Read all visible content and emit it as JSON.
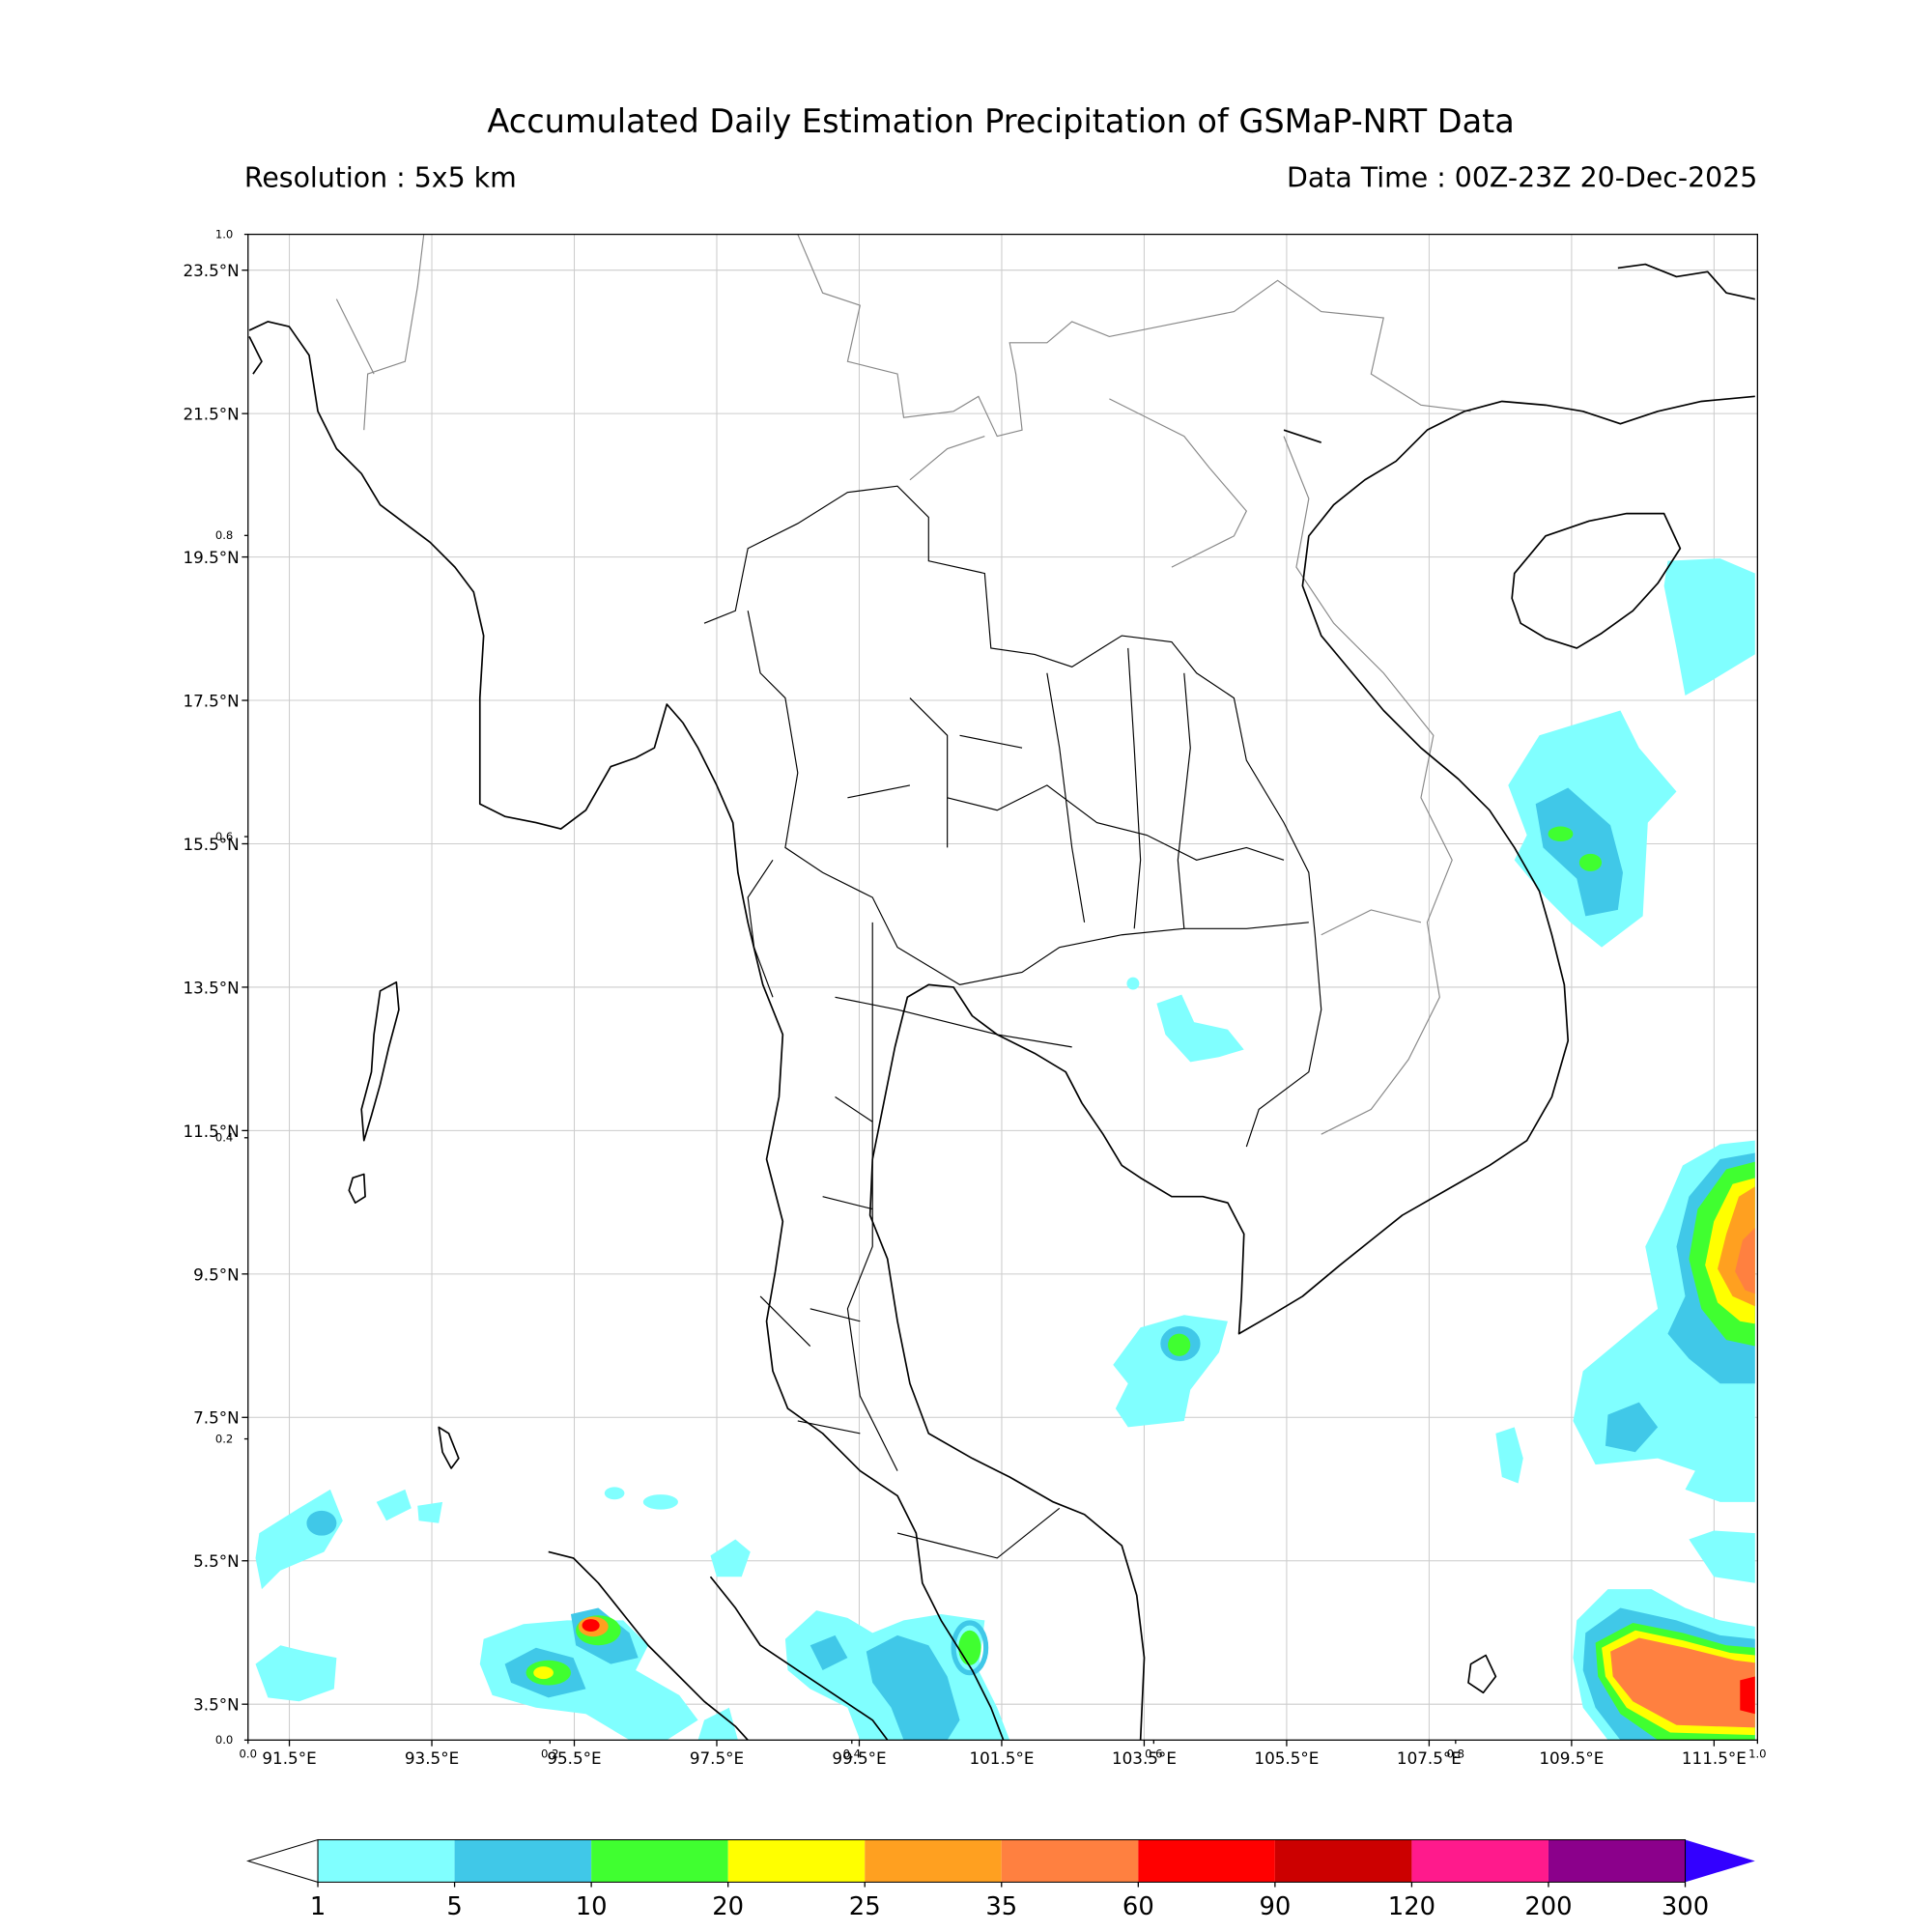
{
  "map": {
    "title": "Accumulated Daily Estimation Precipitation of GSMaP-NRT Data",
    "resolution": "Resolution : 5x5 km",
    "data_time": "Data Time : 00Z-23Z 20-Dec-2025",
    "xlim": [
      90.92,
      112.11
    ],
    "ylim": [
      3,
      24
    ],
    "xticks": [
      {
        "value": 91.5,
        "label": "91.5°E"
      },
      {
        "value": 93.5,
        "label": "93.5°E"
      },
      {
        "value": 95.5,
        "label": "95.5°E"
      },
      {
        "value": 97.5,
        "label": "97.5°E"
      },
      {
        "value": 99.5,
        "label": "99.5°E"
      },
      {
        "value": 101.5,
        "label": "101.5°E"
      },
      {
        "value": 103.5,
        "label": "103.5°E"
      },
      {
        "value": 105.5,
        "label": "105.5°E"
      },
      {
        "value": 107.5,
        "label": "107.5°E"
      },
      {
        "value": 109.5,
        "label": "109.5°E"
      },
      {
        "value": 111.5,
        "label": "111.5°E"
      }
    ],
    "yticks": [
      {
        "value": 3.5,
        "label": "3.5°N"
      },
      {
        "value": 5.5,
        "label": "5.5°N"
      },
      {
        "value": 7.5,
        "label": "7.5°N"
      },
      {
        "value": 9.5,
        "label": "9.5°N"
      },
      {
        "value": 11.5,
        "label": "11.5°N"
      },
      {
        "value": 13.5,
        "label": "13.5°N"
      },
      {
        "value": 15.5,
        "label": "15.5°N"
      },
      {
        "value": 17.5,
        "label": "17.5°N"
      },
      {
        "value": 19.5,
        "label": "19.5°N"
      },
      {
        "value": 21.5,
        "label": "21.5°N"
      },
      {
        "value": 23.5,
        "label": "23.5°N"
      }
    ],
    "grid": true,
    "frame_axis": {
      "xlim": [
        0,
        1
      ],
      "ylim": [
        0,
        1
      ],
      "xticks": [
        {
          "value": 0,
          "label": "0.0"
        },
        0.2,
        0.4,
        0.6,
        0.8,
        {
          "value": 1,
          "label": "1.0"
        }
      ],
      "yticks": [
        {
          "value": 0,
          "label": "0.0"
        },
        0.2,
        0.4,
        0.6,
        0.8,
        {
          "value": 1,
          "label": "1.0"
        }
      ]
    },
    "colorbar": {
      "levels": [
        1,
        5,
        10,
        20,
        25,
        35,
        60,
        90,
        120,
        200,
        300
      ],
      "colors": [
        "#80ffff",
        "#40c8e8",
        "#40ff30",
        "#ffff00",
        "#ffa020",
        "#ff8040",
        "#ff0000",
        "#cc0000",
        "#ff1a8c",
        "#8b008b"
      ],
      "under_color": "#ffffff",
      "over_color": "#3300ff"
    }
  }
}
